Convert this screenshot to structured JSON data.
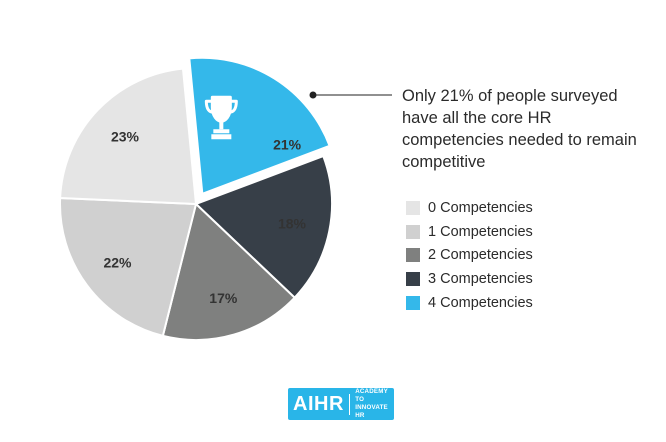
{
  "chart_data": {
    "type": "pie",
    "slices": [
      {
        "label": "0 Competencies",
        "value": 23,
        "value_label": "23%",
        "color": "#e5e5e5"
      },
      {
        "label": "1 Competencies",
        "value": 22,
        "value_label": "22%",
        "color": "#d0d0d0"
      },
      {
        "label": "2 Competencies",
        "value": 17,
        "value_label": "17%",
        "color": "#7f807f"
      },
      {
        "label": "3 Competencies",
        "value": 18,
        "value_label": "18%",
        "color": "#373f48"
      },
      {
        "label": "4 Competencies",
        "value": 21,
        "value_label": "21%",
        "color": "#34b8ea",
        "exploded": true
      }
    ],
    "legend_placement": "right",
    "annotation": "Only 21% of people surveyed have all the core HR competencies needed to remain competitive",
    "icon": "trophy-icon"
  },
  "logo": {
    "main": "AIHR",
    "sub_line1": "ACADEMY TO",
    "sub_line2": "INNOVATE HR",
    "color": "#29b5e8"
  }
}
